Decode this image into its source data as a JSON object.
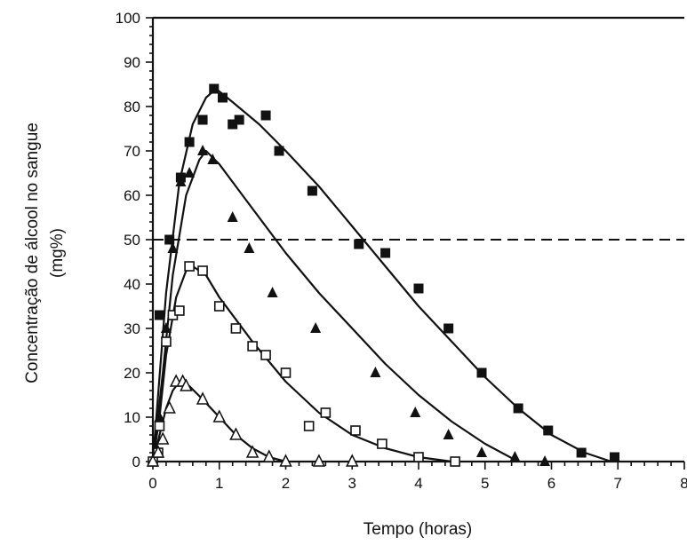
{
  "chart_data": {
    "type": "scatter",
    "title": "",
    "xlabel": "Tempo (horas)",
    "ylabel_lines": [
      "Concentração de álcool no sangue",
      "(mg%)"
    ],
    "xlim": [
      0,
      8
    ],
    "ylim": [
      0,
      100
    ],
    "x_ticks": [
      0,
      1,
      2,
      3,
      4,
      5,
      6,
      7,
      8
    ],
    "y_ticks": [
      0,
      10,
      20,
      30,
      40,
      50,
      60,
      70,
      80,
      90,
      100
    ],
    "x_tick_labels": [
      "0",
      "1",
      "2",
      "3",
      "4",
      "5",
      "6",
      "7",
      "8"
    ],
    "y_tick_labels": [
      "0",
      "10",
      "20",
      "30",
      "40",
      "50",
      "60",
      "70",
      "80",
      "90",
      "100"
    ],
    "reference_line": {
      "y": 50,
      "style": "dashed"
    },
    "grid": false,
    "legend": "none",
    "series": [
      {
        "marker": "filled-square",
        "points": [
          [
            0.0,
            0
          ],
          [
            0.1,
            33
          ],
          [
            0.25,
            50
          ],
          [
            0.42,
            64
          ],
          [
            0.55,
            72
          ],
          [
            0.75,
            77
          ],
          [
            0.92,
            84
          ],
          [
            1.05,
            82
          ],
          [
            1.2,
            76
          ],
          [
            1.3,
            77
          ],
          [
            1.7,
            78
          ],
          [
            1.9,
            70
          ],
          [
            2.4,
            61
          ],
          [
            3.1,
            49
          ],
          [
            3.5,
            47
          ],
          [
            4.0,
            39
          ],
          [
            4.45,
            30
          ],
          [
            4.95,
            20
          ],
          [
            5.5,
            12
          ],
          [
            5.95,
            7
          ],
          [
            6.45,
            2
          ],
          [
            6.95,
            1
          ]
        ],
        "curve": [
          [
            0.0,
            0
          ],
          [
            0.2,
            38
          ],
          [
            0.4,
            63
          ],
          [
            0.6,
            76
          ],
          [
            0.8,
            82
          ],
          [
            0.95,
            84
          ],
          [
            1.2,
            81
          ],
          [
            1.6,
            76
          ],
          [
            2.0,
            70
          ],
          [
            2.5,
            62
          ],
          [
            3.0,
            53
          ],
          [
            3.5,
            44
          ],
          [
            4.0,
            35
          ],
          [
            4.5,
            27
          ],
          [
            5.0,
            19
          ],
          [
            5.5,
            12
          ],
          [
            6.0,
            6
          ],
          [
            6.5,
            2
          ],
          [
            6.9,
            0
          ]
        ]
      },
      {
        "marker": "filled-triangle",
        "points": [
          [
            0.0,
            0
          ],
          [
            0.1,
            10
          ],
          [
            0.2,
            30
          ],
          [
            0.3,
            48
          ],
          [
            0.42,
            63
          ],
          [
            0.55,
            65
          ],
          [
            0.75,
            70
          ],
          [
            0.9,
            68
          ],
          [
            1.2,
            55
          ],
          [
            1.45,
            48
          ],
          [
            1.8,
            38
          ],
          [
            2.45,
            30
          ],
          [
            3.35,
            20
          ],
          [
            3.95,
            11
          ],
          [
            4.45,
            6
          ],
          [
            4.95,
            2
          ],
          [
            5.45,
            1
          ],
          [
            5.9,
            0
          ]
        ],
        "curve": [
          [
            0.0,
            0
          ],
          [
            0.15,
            20
          ],
          [
            0.3,
            42
          ],
          [
            0.5,
            60
          ],
          [
            0.7,
            68
          ],
          [
            0.8,
            70
          ],
          [
            1.0,
            67
          ],
          [
            1.4,
            59
          ],
          [
            2.0,
            47
          ],
          [
            2.5,
            38
          ],
          [
            3.0,
            30
          ],
          [
            3.5,
            22
          ],
          [
            4.0,
            15
          ],
          [
            4.5,
            9
          ],
          [
            5.0,
            4
          ],
          [
            5.5,
            0
          ]
        ]
      },
      {
        "marker": "open-square",
        "points": [
          [
            0.0,
            0
          ],
          [
            0.08,
            2
          ],
          [
            0.1,
            8
          ],
          [
            0.2,
            27
          ],
          [
            0.3,
            33
          ],
          [
            0.4,
            34
          ],
          [
            0.55,
            44
          ],
          [
            0.75,
            43
          ],
          [
            1.0,
            35
          ],
          [
            1.25,
            30
          ],
          [
            1.5,
            26
          ],
          [
            1.7,
            24
          ],
          [
            2.0,
            20
          ],
          [
            2.35,
            8
          ],
          [
            2.6,
            11
          ],
          [
            3.05,
            7
          ],
          [
            3.45,
            4
          ],
          [
            4.0,
            1
          ],
          [
            4.55,
            0
          ]
        ],
        "curve": [
          [
            0.0,
            0
          ],
          [
            0.1,
            10
          ],
          [
            0.2,
            24
          ],
          [
            0.35,
            37
          ],
          [
            0.5,
            43
          ],
          [
            0.6,
            44
          ],
          [
            0.8,
            42
          ],
          [
            1.0,
            37
          ],
          [
            1.5,
            27
          ],
          [
            2.0,
            18
          ],
          [
            2.5,
            11
          ],
          [
            3.0,
            6
          ],
          [
            3.5,
            3
          ],
          [
            4.0,
            1
          ],
          [
            4.5,
            0
          ]
        ]
      },
      {
        "marker": "open-triangle",
        "points": [
          [
            0.0,
            0
          ],
          [
            0.08,
            2
          ],
          [
            0.15,
            5
          ],
          [
            0.25,
            12
          ],
          [
            0.35,
            18
          ],
          [
            0.45,
            18
          ],
          [
            0.5,
            17
          ],
          [
            0.75,
            14
          ],
          [
            1.0,
            10
          ],
          [
            1.25,
            6
          ],
          [
            1.5,
            2
          ],
          [
            1.75,
            1
          ],
          [
            2.0,
            0
          ],
          [
            2.5,
            0
          ],
          [
            3.0,
            0
          ]
        ],
        "curve": [
          [
            0.0,
            0
          ],
          [
            0.1,
            6
          ],
          [
            0.2,
            12
          ],
          [
            0.3,
            16
          ],
          [
            0.4,
            18
          ],
          [
            0.55,
            17
          ],
          [
            0.75,
            14
          ],
          [
            1.0,
            10
          ],
          [
            1.25,
            6
          ],
          [
            1.5,
            3
          ],
          [
            1.75,
            1
          ],
          [
            2.0,
            0
          ]
        ]
      }
    ]
  }
}
